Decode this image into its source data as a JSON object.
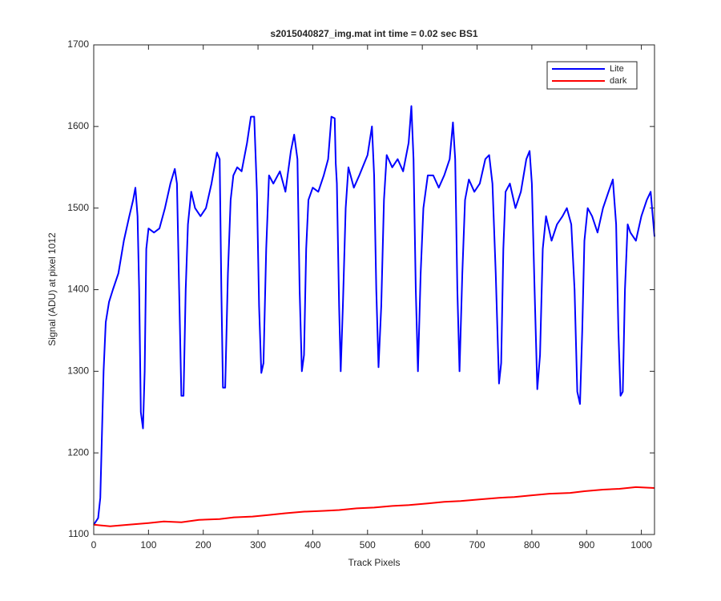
{
  "chart_data": {
    "type": "line",
    "title": "s2015040827_img.mat int time = 0.02 sec   BS1",
    "xlabel": "Track Pixels",
    "ylabel": "Signal (ADU) at pixel 1012",
    "xlim": [
      0,
      1024
    ],
    "ylim": [
      1100,
      1700
    ],
    "xticks": [
      0,
      100,
      200,
      300,
      400,
      500,
      600,
      700,
      800,
      900,
      1000
    ],
    "yticks": [
      1100,
      1200,
      1300,
      1400,
      1500,
      1600,
      1700
    ],
    "legend": "upper right",
    "series": [
      {
        "name": "Lite",
        "color": "#0000ff",
        "x": [
          0,
          8,
          12,
          18,
          22,
          28,
          35,
          45,
          55,
          65,
          72,
          76,
          80,
          83,
          86,
          90,
          93,
          96,
          100,
          110,
          120,
          130,
          140,
          148,
          152,
          156,
          160,
          164,
          168,
          172,
          178,
          185,
          195,
          205,
          215,
          225,
          230,
          233,
          236,
          240,
          245,
          250,
          255,
          262,
          270,
          280,
          287,
          293,
          298,
          302,
          306,
          310,
          315,
          320,
          328,
          340,
          350,
          360,
          366,
          372,
          376,
          380,
          384,
          388,
          392,
          400,
          410,
          420,
          428,
          434,
          440,
          442,
          444,
          448,
          451,
          455,
          460,
          465,
          475,
          485,
          500,
          508,
          512,
          516,
          520,
          525,
          530,
          535,
          545,
          555,
          565,
          575,
          580,
          584,
          588,
          592,
          597,
          602,
          610,
          620,
          630,
          640,
          650,
          656,
          660,
          664,
          668,
          673,
          678,
          685,
          695,
          705,
          715,
          722,
          728,
          734,
          740,
          744,
          748,
          752,
          760,
          770,
          780,
          790,
          796,
          800,
          805,
          810,
          815,
          820,
          826,
          836,
          846,
          856,
          864,
          872,
          878,
          883,
          888,
          892,
          896,
          902,
          910,
          920,
          930,
          940,
          948,
          954,
          958,
          962,
          966,
          970,
          975,
          980,
          990,
          1000,
          1010,
          1017,
          1024
        ],
        "values": [
          1112,
          1120,
          1145,
          1300,
          1360,
          1385,
          1400,
          1420,
          1460,
          1490,
          1510,
          1525,
          1490,
          1400,
          1250,
          1230,
          1300,
          1450,
          1475,
          1470,
          1475,
          1500,
          1530,
          1548,
          1530,
          1400,
          1270,
          1270,
          1400,
          1480,
          1520,
          1500,
          1490,
          1500,
          1530,
          1568,
          1560,
          1400,
          1280,
          1280,
          1420,
          1510,
          1540,
          1550,
          1545,
          1580,
          1612,
          1612,
          1520,
          1380,
          1298,
          1310,
          1450,
          1540,
          1530,
          1545,
          1520,
          1570,
          1590,
          1560,
          1400,
          1300,
          1320,
          1450,
          1510,
          1525,
          1520,
          1540,
          1560,
          1612,
          1610,
          1555,
          1530,
          1380,
          1300,
          1380,
          1500,
          1550,
          1525,
          1540,
          1565,
          1600,
          1540,
          1400,
          1305,
          1380,
          1510,
          1565,
          1550,
          1560,
          1545,
          1580,
          1625,
          1560,
          1400,
          1300,
          1420,
          1500,
          1540,
          1540,
          1525,
          1540,
          1560,
          1605,
          1560,
          1400,
          1300,
          1420,
          1510,
          1535,
          1520,
          1530,
          1560,
          1565,
          1530,
          1420,
          1285,
          1310,
          1450,
          1520,
          1530,
          1500,
          1520,
          1560,
          1570,
          1530,
          1400,
          1278,
          1320,
          1450,
          1490,
          1460,
          1480,
          1490,
          1500,
          1480,
          1400,
          1275,
          1260,
          1350,
          1460,
          1500,
          1490,
          1470,
          1500,
          1520,
          1535,
          1480,
          1350,
          1270,
          1275,
          1400,
          1480,
          1470,
          1460,
          1490,
          1510,
          1520,
          1465
        ]
      },
      {
        "name": "dark",
        "color": "#ff0000",
        "x": [
          0,
          30,
          64,
          100,
          128,
          160,
          192,
          230,
          256,
          290,
          320,
          350,
          384,
          420,
          448,
          480,
          512,
          545,
          576,
          610,
          640,
          670,
          704,
          740,
          768,
          800,
          832,
          870,
          896,
          930,
          960,
          990,
          1024
        ],
        "values": [
          1112,
          1110,
          1112,
          1114,
          1116,
          1115,
          1118,
          1119,
          1121,
          1122,
          1124,
          1126,
          1128,
          1129,
          1130,
          1132,
          1133,
          1135,
          1136,
          1138,
          1140,
          1141,
          1143,
          1145,
          1146,
          1148,
          1150,
          1151,
          1153,
          1155,
          1156,
          1158,
          1157
        ]
      }
    ]
  }
}
